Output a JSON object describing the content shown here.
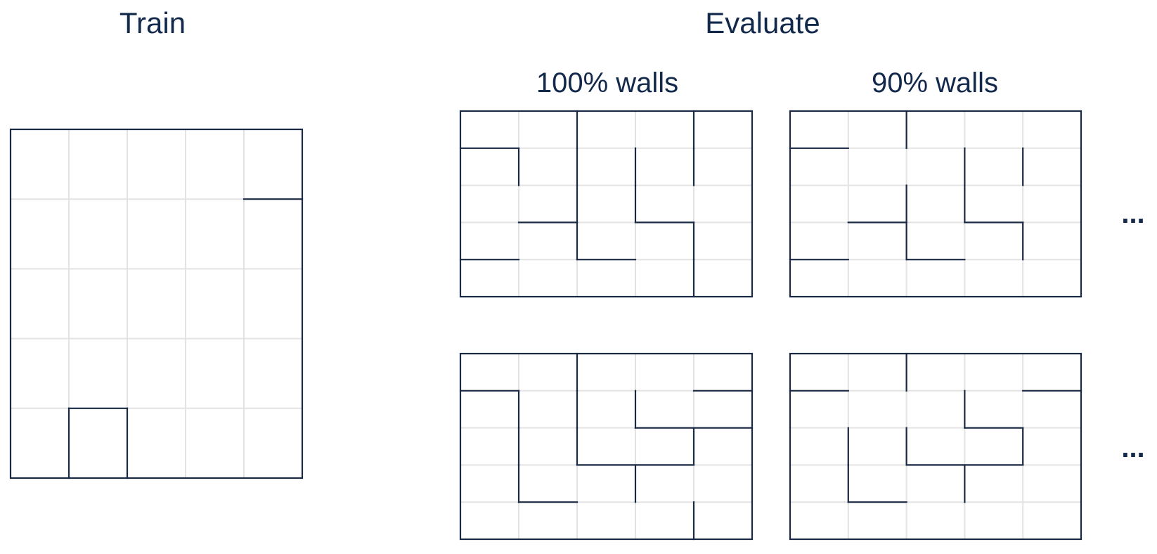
{
  "titles": {
    "train": "Train",
    "evaluate": "Evaluate",
    "col_100": "100% walls",
    "col_90": "90% walls",
    "ellipsis": "..."
  },
  "colors": {
    "text": "#13294b",
    "wall": "#1b2a44",
    "grid": "#e3e3e3"
  },
  "mazes": [
    {
      "id": "train-maze",
      "section": "train",
      "rows": 5,
      "cols": 5,
      "walls": [
        [
          "h",
          1,
          4,
          5
        ],
        [
          "h",
          4,
          1,
          2
        ],
        [
          "v",
          1,
          4,
          5
        ],
        [
          "v",
          2,
          4,
          5
        ]
      ]
    },
    {
      "id": "eval-100-top",
      "section": "evaluate-100",
      "rows": 5,
      "cols": 5,
      "walls": [
        [
          "v",
          2,
          0,
          1
        ],
        [
          "v",
          4,
          0,
          1
        ],
        [
          "h",
          1,
          0,
          1
        ],
        [
          "v",
          1,
          1,
          2
        ],
        [
          "v",
          2,
          1,
          2
        ],
        [
          "v",
          3,
          1,
          2
        ],
        [
          "v",
          4,
          1,
          2
        ],
        [
          "v",
          2,
          2,
          3
        ],
        [
          "v",
          3,
          2,
          3
        ],
        [
          "h",
          3,
          1,
          2
        ],
        [
          "h",
          3,
          3,
          4
        ],
        [
          "v",
          2,
          3,
          4
        ],
        [
          "v",
          4,
          3,
          4
        ],
        [
          "h",
          4,
          0,
          1
        ],
        [
          "h",
          4,
          2,
          3
        ],
        [
          "v",
          4,
          4,
          5
        ]
      ]
    },
    {
      "id": "eval-90-top",
      "section": "evaluate-90",
      "rows": 5,
      "cols": 5,
      "walls": [
        [
          "v",
          2,
          0,
          1
        ],
        [
          "h",
          1,
          0,
          1
        ],
        [
          "v",
          3,
          1,
          2
        ],
        [
          "v",
          4,
          1,
          2
        ],
        [
          "v",
          2,
          2,
          3
        ],
        [
          "v",
          3,
          2,
          3
        ],
        [
          "h",
          3,
          1,
          2
        ],
        [
          "h",
          3,
          3,
          4
        ],
        [
          "v",
          2,
          3,
          4
        ],
        [
          "v",
          4,
          3,
          4
        ],
        [
          "h",
          4,
          0,
          1
        ],
        [
          "h",
          4,
          2,
          3
        ]
      ]
    },
    {
      "id": "eval-100-bottom",
      "section": "evaluate-100",
      "rows": 5,
      "cols": 5,
      "walls": [
        [
          "v",
          2,
          0,
          1
        ],
        [
          "h",
          1,
          0,
          1
        ],
        [
          "h",
          1,
          4,
          5
        ],
        [
          "v",
          1,
          1,
          2
        ],
        [
          "v",
          2,
          1,
          2
        ],
        [
          "v",
          3,
          1,
          2
        ],
        [
          "h",
          2,
          3,
          5
        ],
        [
          "v",
          1,
          2,
          3
        ],
        [
          "v",
          2,
          2,
          3
        ],
        [
          "v",
          4,
          2,
          3
        ],
        [
          "h",
          3,
          2,
          4
        ],
        [
          "v",
          1,
          3,
          4
        ],
        [
          "v",
          3,
          3,
          4
        ],
        [
          "h",
          4,
          1,
          2
        ],
        [
          "v",
          4,
          4,
          5
        ]
      ]
    },
    {
      "id": "eval-90-bottom",
      "section": "evaluate-90",
      "rows": 5,
      "cols": 5,
      "walls": [
        [
          "v",
          2,
          0,
          1
        ],
        [
          "h",
          1,
          0,
          1
        ],
        [
          "h",
          1,
          4,
          5
        ],
        [
          "v",
          3,
          1,
          2
        ],
        [
          "h",
          2,
          3,
          4
        ],
        [
          "v",
          1,
          2,
          3
        ],
        [
          "v",
          2,
          2,
          3
        ],
        [
          "v",
          4,
          2,
          3
        ],
        [
          "h",
          3,
          2,
          4
        ],
        [
          "v",
          1,
          3,
          4
        ],
        [
          "v",
          3,
          3,
          4
        ],
        [
          "h",
          4,
          1,
          2
        ]
      ]
    }
  ]
}
